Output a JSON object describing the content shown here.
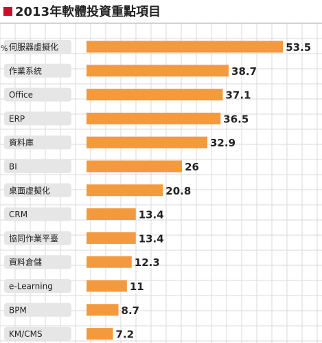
{
  "title": "2013年軟體投資重點項目",
  "colors": {
    "bar": "#f39a3e",
    "accent": "#c8102e",
    "label_box": "#e6e6e6",
    "grid": "#dadada"
  },
  "chart_data": {
    "type": "bar",
    "orientation": "horizontal",
    "title": "2013年軟體投資重點項目",
    "categories": [
      "伺服器虛擬化",
      "作業系統",
      "Office",
      "ERP",
      "資料庫",
      "BI",
      "桌面虛擬化",
      "CRM",
      "協同作業平臺",
      "資料倉儲",
      "e-Learning",
      "BPM",
      "KM/CMS"
    ],
    "values": [
      53.5,
      38.7,
      37.1,
      36.5,
      32.9,
      26,
      20.8,
      13.4,
      13.4,
      12.3,
      11,
      8.7,
      7.2
    ],
    "value_labels": [
      "53.5",
      "38.7",
      "37.1",
      "36.5",
      "32.9",
      "26",
      "20.8",
      "13.4",
      "13.4",
      "12.3",
      "11",
      "8.7",
      "7.2"
    ],
    "first_value_suffix": "%",
    "grid": true
  }
}
